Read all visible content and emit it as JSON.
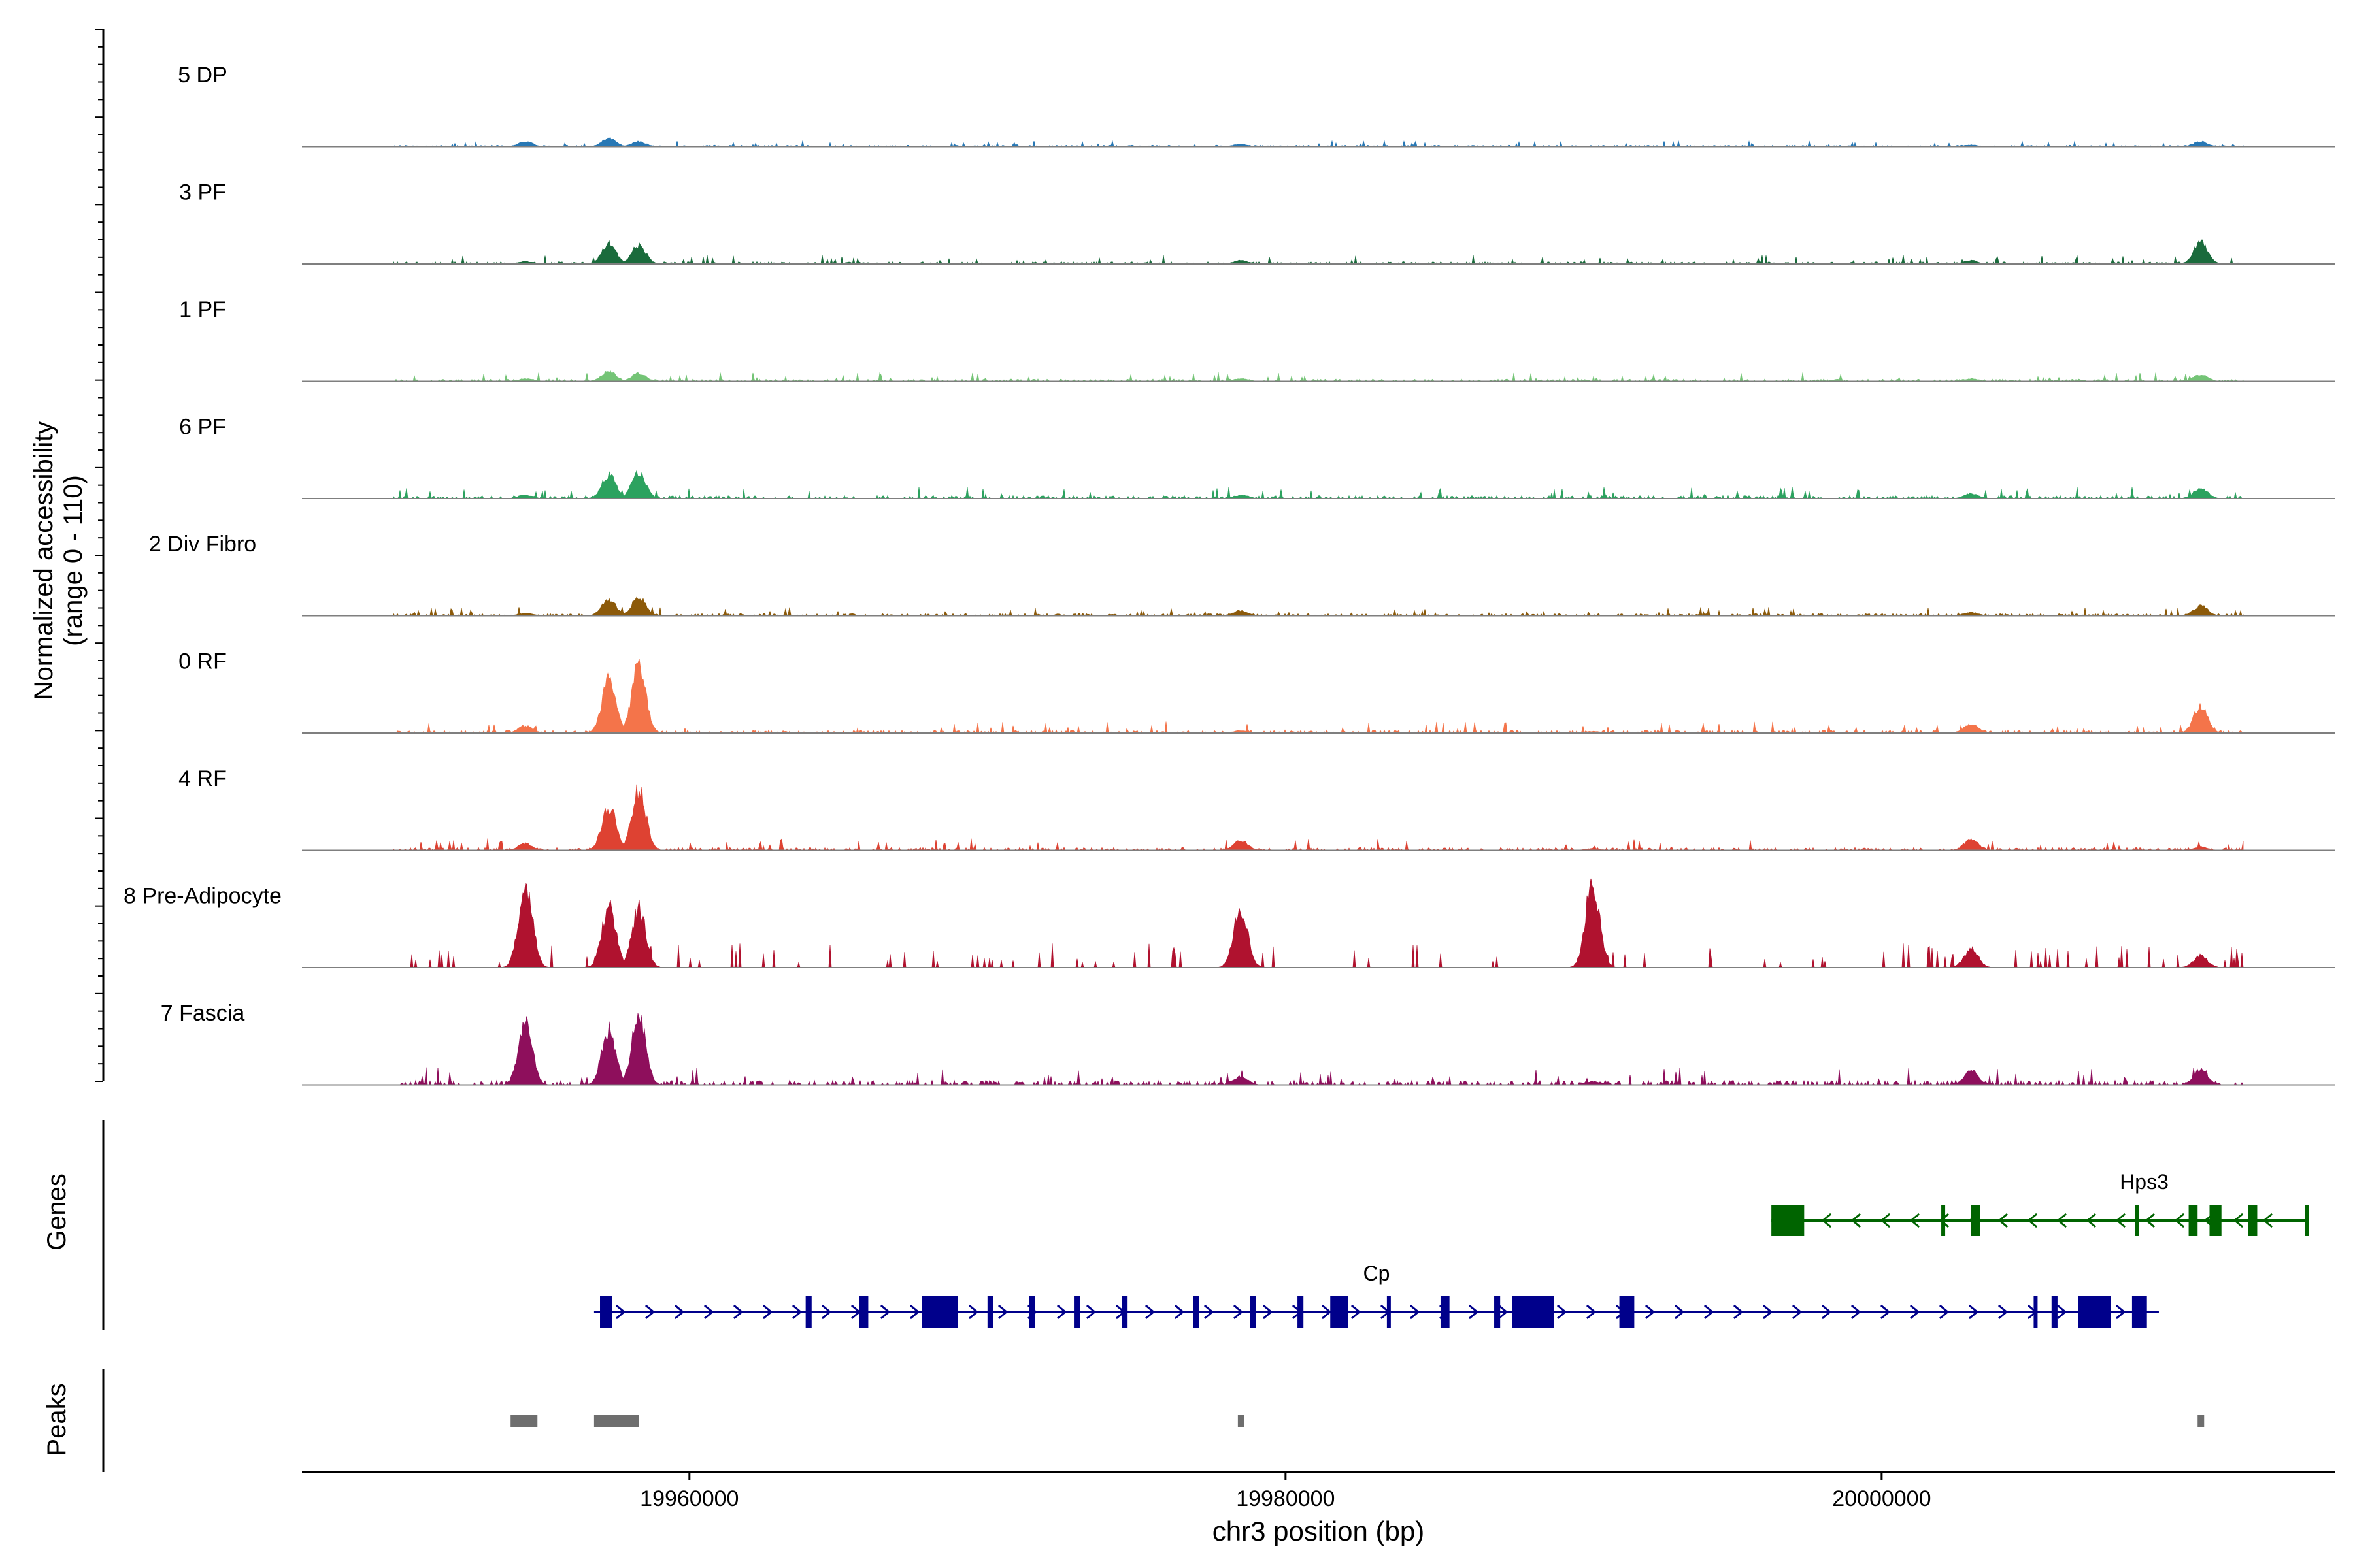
{
  "chart_data": {
    "type": "area",
    "title": "",
    "ylabel_line1": "Normalized accessibility",
    "ylabel_line2": "(range 0 - 110)",
    "ylim": [
      0,
      110
    ],
    "xlabel": "chr3 position (bp)",
    "xlim": [
      19947000,
      20015200
    ],
    "x_ticks": [
      19960000,
      19980000,
      20000000
    ],
    "x_tick_labels": [
      "19960000",
      "19980000",
      "20000000"
    ],
    "peak_positions": [
      19954500,
      19957300,
      19958300,
      19978500,
      19990300,
      20003000,
      20010700
    ],
    "tracks": [
      {
        "name": "5 DP",
        "color": "#2878b5",
        "peaks": [
          6,
          10,
          6,
          3,
          0,
          2,
          6
        ],
        "base": 1
      },
      {
        "name": "3 PF",
        "color": "#1a6b3c",
        "peaks": [
          3,
          24,
          22,
          4,
          0,
          4,
          26
        ],
        "base": 1.5
      },
      {
        "name": "1 PF",
        "color": "#74c476",
        "peaks": [
          3,
          12,
          9,
          3,
          0,
          3,
          8
        ],
        "base": 1.5
      },
      {
        "name": "6 PF",
        "color": "#2ca25f",
        "peaks": [
          4,
          28,
          30,
          4,
          0,
          6,
          12
        ],
        "base": 2
      },
      {
        "name": "2 Div Fibro",
        "color": "#8c5a0a",
        "peaks": [
          3,
          20,
          22,
          6,
          0,
          4,
          12
        ],
        "base": 1.5
      },
      {
        "name": "0 RF",
        "color": "#f4744a",
        "peaks": [
          9,
          62,
          80,
          3,
          2,
          11,
          32
        ],
        "base": 2
      },
      {
        "name": "4 RF",
        "color": "#de4232",
        "peaks": [
          8,
          52,
          72,
          12,
          2,
          13,
          4
        ],
        "base": 2
      },
      {
        "name": "8 Pre-Adipocyte",
        "color": "#b0122f",
        "peaks": [
          96,
          72,
          70,
          70,
          102,
          22,
          14
        ],
        "base": 0
      },
      {
        "name": "7 Fascia",
        "color": "#8e0f5c",
        "peaks": [
          72,
          68,
          82,
          10,
          4,
          17,
          18
        ],
        "base": 3
      }
    ],
    "genes_label": "Genes",
    "genes": [
      {
        "name": "Hps3",
        "strand": "-",
        "start": 19996300,
        "end": 20014300,
        "color": "#006400",
        "exons": [
          [
            19996300,
            19997400
          ],
          [
            20002000,
            20002100
          ],
          [
            20003000,
            20003300
          ],
          [
            20008500,
            20008600
          ],
          [
            20010300,
            20010600
          ],
          [
            20011000,
            20011400
          ],
          [
            20012300,
            20012600
          ],
          [
            20014200,
            20014300
          ]
        ]
      },
      {
        "name": "Cp",
        "strand": "+",
        "start": 19956800,
        "end": 20009300,
        "color": "#00008b",
        "exons": [
          [
            19957000,
            19957400
          ],
          [
            19963900,
            19964100
          ],
          [
            19965700,
            19966000
          ],
          [
            19967800,
            19969000
          ],
          [
            19970000,
            19970200
          ],
          [
            19971400,
            19971600
          ],
          [
            19972900,
            19973100
          ],
          [
            19974500,
            19974700
          ],
          [
            19976900,
            19977100
          ],
          [
            19978800,
            19979000
          ],
          [
            19980400,
            19980600
          ],
          [
            19981500,
            19982100
          ],
          [
            19983400,
            19983500
          ],
          [
            19985200,
            19985500
          ],
          [
            19987000,
            19987200
          ],
          [
            19987600,
            19989000
          ],
          [
            19991200,
            19991700
          ],
          [
            20005100,
            20005200
          ],
          [
            20005700,
            20005900
          ],
          [
            20006600,
            20007700
          ],
          [
            20008400,
            20008900
          ]
        ]
      }
    ],
    "peaks_label": "Peaks",
    "peak_regions": [
      [
        19954000,
        19954900
      ],
      [
        19956800,
        19958300
      ],
      [
        19978400,
        19978600
      ],
      [
        20010600,
        20010800
      ]
    ]
  }
}
